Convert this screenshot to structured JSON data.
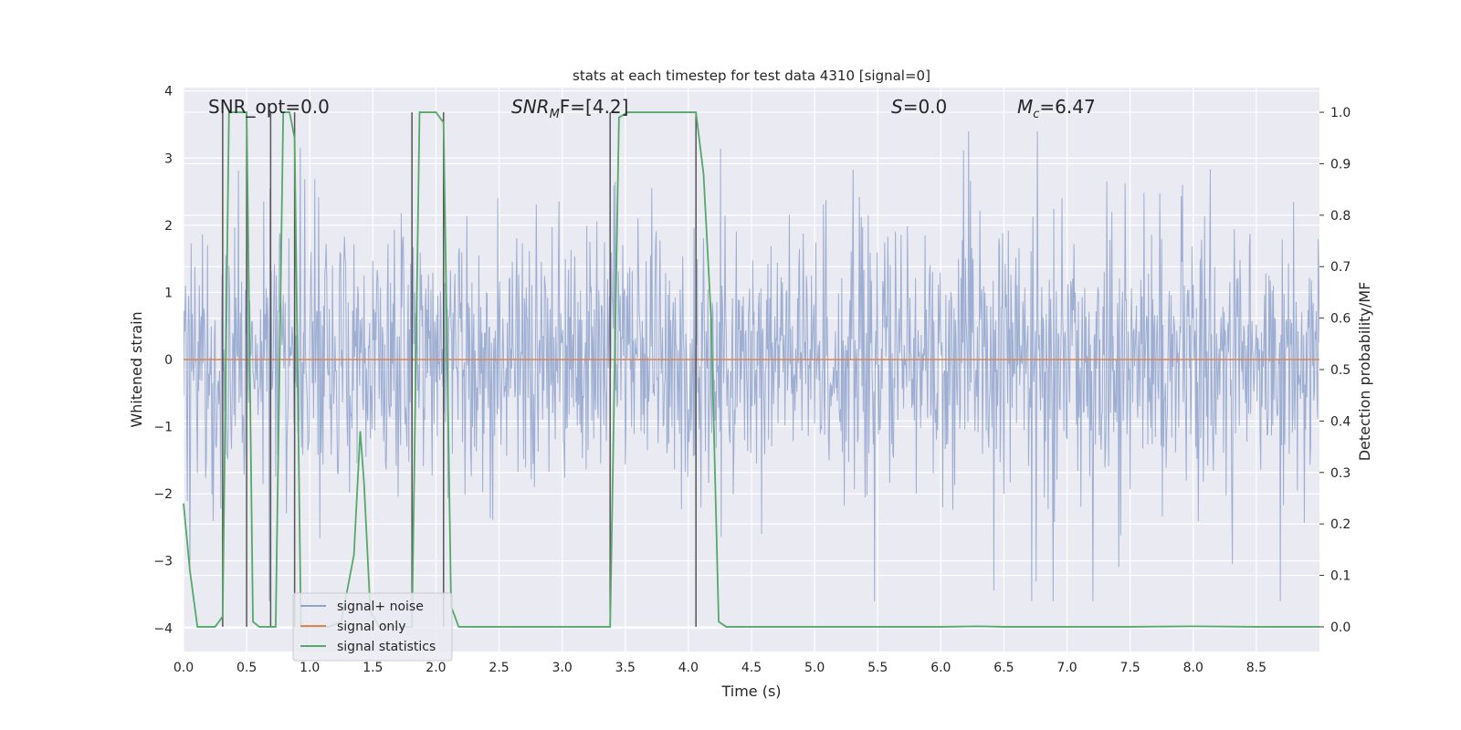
{
  "chart_data": {
    "type": "line",
    "title": "stats at each timestep for test data 4310 [signal=0]",
    "xlabel": "Time (s)",
    "ylabel": "Whitened strain",
    "ylabel_right": "Detection probability/MF",
    "xlim": [
      0.0,
      9.0
    ],
    "ylim": [
      -4.35,
      4.05
    ],
    "ylim_right": [
      -0.048,
      1.048
    ],
    "x_ticks": [
      "0.0",
      "0.5",
      "1.0",
      "1.5",
      "2.0",
      "2.5",
      "3.0",
      "3.5",
      "4.0",
      "4.5",
      "5.0",
      "5.5",
      "6.0",
      "6.5",
      "7.0",
      "7.5",
      "8.0",
      "8.5"
    ],
    "y_ticks": [
      "4",
      "3",
      "2",
      "1",
      "0",
      "−1",
      "−2",
      "−3",
      "−4"
    ],
    "y_ticks_right": [
      "1.0",
      "0.9",
      "0.8",
      "0.7",
      "0.6",
      "0.5",
      "0.4",
      "0.3",
      "0.2",
      "0.1",
      "0.0"
    ],
    "annotations": {
      "snr_opt": "SNR_opt=0.0",
      "snr_mf_main": "SNR",
      "snr_mf_sub": "M",
      "snr_mf_rest": "F=[4.2]",
      "s_var": "S",
      "s_rest": "=0.0",
      "mc_main": "M",
      "mc_sub": "c",
      "mc_rest": "=6.47"
    },
    "vertical_markers_x": [
      0.31,
      0.5,
      0.69,
      0.88,
      1.81,
      2.06,
      3.38,
      4.06
    ],
    "series": [
      {
        "name": "signal+ noise",
        "axis": "left",
        "color": "#8fa3cc",
        "description": "whitened noise, roughly symmetric; central band about -1.7 to 1.3, peaks near ±3.5",
        "envelope_hi": 3.4,
        "envelope_lo": -3.6
      },
      {
        "name": "signal only",
        "axis": "left",
        "color": "#dd8452",
        "x": [
          0.0,
          9.0
        ],
        "y": [
          0.0,
          0.0
        ]
      },
      {
        "name": "signal statistics",
        "axis": "right",
        "color": "#55a868",
        "x": [
          0.0,
          0.05,
          0.11,
          0.2,
          0.25,
          0.31,
          0.36,
          0.42,
          0.5,
          0.55,
          0.6,
          0.67,
          0.73,
          0.79,
          0.84,
          0.88,
          0.93,
          0.98,
          1.06,
          1.15,
          1.25,
          1.35,
          1.4,
          1.43,
          1.48,
          1.55,
          1.63,
          1.7,
          1.76,
          1.81,
          1.87,
          1.93,
          2.0,
          2.06,
          2.12,
          2.18,
          2.3,
          2.6,
          3.0,
          3.38,
          3.45,
          3.52,
          3.6,
          3.8,
          4.06,
          4.12,
          4.18,
          4.24,
          4.3,
          4.35,
          4.5,
          5.0,
          5.5,
          6.0,
          6.3,
          6.5,
          7.0,
          7.5,
          8.0,
          8.5,
          9.0
        ],
        "y": [
          0.24,
          0.11,
          0.0,
          0.0,
          0.0,
          0.02,
          1.0,
          1.0,
          1.0,
          0.01,
          0.0,
          0.0,
          0.0,
          1.0,
          1.0,
          0.95,
          0.0,
          0.0,
          0.0,
          0.0,
          0.01,
          0.14,
          0.38,
          0.28,
          0.03,
          0.0,
          0.0,
          0.0,
          0.0,
          0.0,
          1.0,
          1.0,
          1.0,
          0.98,
          0.04,
          0.0,
          0.0,
          0.0,
          0.0,
          0.0,
          0.99,
          1.0,
          1.0,
          1.0,
          1.0,
          0.88,
          0.6,
          0.01,
          0.0,
          0.0,
          0.0,
          0.0,
          0.0,
          0.0,
          0.001,
          0.0,
          0.0,
          0.0,
          0.001,
          0.0,
          0.0
        ]
      }
    ],
    "legend": [
      "signal+ noise",
      "signal only",
      "signal statistics"
    ],
    "legend_position": "lower-left",
    "grid": true
  }
}
